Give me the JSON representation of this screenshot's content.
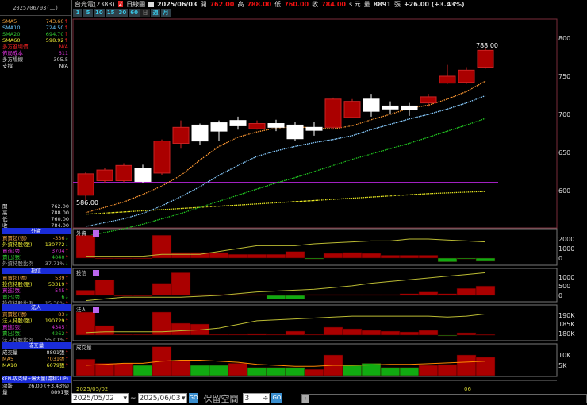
{
  "header": {
    "stock": "台光電(2383)",
    "badge": "2",
    "chart_type": "日線圖",
    "date": "2025/06/03",
    "open_label": "開",
    "open": "762.00",
    "high_label": "高",
    "high": "788.00",
    "low_label": "低",
    "low": "760.00",
    "close_label": "收",
    "close": "784.00",
    "unit": "s 元",
    "vol_label": "量",
    "volume": "8891",
    "vol_unit": "張",
    "change": "+26.00 (+3.43%)"
  },
  "periods": [
    "1",
    "5",
    "10",
    "15",
    "30",
    "60",
    "日",
    "週",
    "月"
  ],
  "left": {
    "date": "2025/06/03(二)",
    "ma": [
      {
        "label": "SMA5",
        "value": "743.60",
        "arrow": "↑",
        "color": "#e8a040"
      },
      {
        "label": "SMA10",
        "value": "724.50",
        "arrow": "↑",
        "color": "#6ac8ff"
      },
      {
        "label": "SMA20",
        "value": "694.70",
        "arrow": "↑",
        "color": "#3c3"
      },
      {
        "label": "SMA60",
        "value": "598.92",
        "arrow": "↑",
        "color": "#ee3"
      },
      {
        "label": "多方進場價",
        "value": "N/A",
        "arrow": "",
        "color": "#e22"
      },
      {
        "label": "佈局成本",
        "value": "611",
        "arrow": "",
        "color": "#d3d"
      },
      {
        "label": "多方場線",
        "value": "305.5",
        "arrow": "",
        "color": "#ddd"
      },
      {
        "label": "支撐",
        "value": "N/A",
        "arrow": "",
        "color": "#ddd"
      }
    ],
    "ohlc": [
      {
        "label": "開",
        "value": "762.00"
      },
      {
        "label": "高",
        "value": "788.00"
      },
      {
        "label": "低",
        "value": "760.00"
      },
      {
        "label": "收",
        "value": "784.00"
      }
    ],
    "sections": [
      {
        "title": "外資",
        "rows": [
          {
            "label": "買賣超(張)",
            "value": "-336",
            "arrow": "↓",
            "color": "#e8a040"
          },
          {
            "label": "外資持股(張)",
            "value": "130772",
            "arrow": "↓",
            "color": "#ee3"
          },
          {
            "label": "買進(張)",
            "value": "3704",
            "arrow": "↑",
            "color": "#d3d"
          },
          {
            "label": "賣出(張)",
            "value": "4040",
            "arrow": "↑",
            "color": "#3c3"
          },
          {
            "label": "外資持股比例",
            "value": "37.71%",
            "arrow": "↓",
            "color": "#aaa"
          }
        ]
      },
      {
        "title": "投信",
        "rows": [
          {
            "label": "買賣超(張)",
            "value": "539",
            "arrow": "↑",
            "color": "#e8a040"
          },
          {
            "label": "投信持股(張)",
            "value": "53319",
            "arrow": "↑",
            "color": "#ee3"
          },
          {
            "label": "買進(張)",
            "value": "545",
            "arrow": "↑",
            "color": "#d3d"
          },
          {
            "label": "賣出(張)",
            "value": "6",
            "arrow": "↓",
            "color": "#3c3"
          },
          {
            "label": "投信持股比例",
            "value": "15.38%",
            "arrow": "↑",
            "color": "#aaa"
          }
        ]
      },
      {
        "title": "法人",
        "rows": [
          {
            "label": "買賣超(張)",
            "value": "83",
            "arrow": "↓",
            "color": "#e8a040"
          },
          {
            "label": "法人持股(張)",
            "value": "190729",
            "arrow": "↑",
            "color": "#ee3"
          },
          {
            "label": "買進(張)",
            "value": "4345",
            "arrow": "↑",
            "color": "#d3d"
          },
          {
            "label": "賣出(張)",
            "value": "4262",
            "arrow": "↑",
            "color": "#3c3"
          },
          {
            "label": "法人持股比例",
            "value": "55.01%",
            "arrow": "↑",
            "color": "#aaa"
          }
        ]
      },
      {
        "title": "成交量",
        "rows": [
          {
            "label": "成交量",
            "value": "8891張",
            "arrow": "↑",
            "color": "#ddd"
          },
          {
            "label": "MA5",
            "value": "7031張",
            "arrow": "↑",
            "color": "#e8a040"
          },
          {
            "label": "MA10",
            "value": "6079張",
            "arrow": "↑",
            "color": "#ee3"
          }
        ]
      }
    ],
    "ken": "KEN-攻克線+爆大量(處利2UP)",
    "change_label": "漲跌",
    "change": "26.00 (+3.43%)",
    "vol_label": "量",
    "volume": "8891張"
  },
  "bottom": {
    "from": "2025/05/02",
    "tilde": "~",
    "to": "2025/06/03",
    "go": "GO",
    "reserve_label": "保留空間",
    "reserve": "3"
  },
  "chart_data": {
    "type": "candlestick",
    "x_ticks": [
      "2025/05/02",
      "06"
    ],
    "price_axis": [
      "800",
      "750",
      "700",
      "650",
      "600"
    ],
    "ylim": [
      560,
      810
    ],
    "max_label": "788.00",
    "min_label": "586.00",
    "candles": [
      [
        594,
        625,
        586,
        622
      ],
      [
        613,
        630,
        610,
        627
      ],
      [
        613,
        636,
        611,
        633
      ],
      [
        629,
        634,
        610,
        612
      ],
      [
        623,
        667,
        620,
        665
      ],
      [
        662,
        692,
        655,
        683
      ],
      [
        686,
        688,
        660,
        665
      ],
      [
        689,
        692,
        665,
        678
      ],
      [
        692,
        697,
        680,
        685
      ],
      [
        681,
        692,
        680,
        688
      ],
      [
        688,
        693,
        678,
        683
      ],
      [
        686,
        690,
        665,
        668
      ],
      [
        683,
        690,
        672,
        679
      ],
      [
        683,
        722,
        680,
        720
      ],
      [
        696,
        720,
        695,
        717
      ],
      [
        720,
        727,
        697,
        704
      ],
      [
        711,
        717,
        700,
        707
      ],
      [
        711,
        715,
        698,
        706
      ],
      [
        715,
        727,
        710,
        723
      ],
      [
        741,
        765,
        740,
        750
      ],
      [
        742,
        762,
        740,
        758
      ],
      [
        762,
        788,
        760,
        784
      ]
    ],
    "sma5": [
      571,
      578,
      585,
      595,
      606,
      620,
      640,
      658,
      670,
      677,
      682,
      684,
      682,
      681,
      685,
      693,
      700,
      708,
      712,
      720,
      730,
      743.6
    ],
    "sma10": [
      553,
      558,
      563,
      570,
      580,
      592,
      605,
      620,
      633,
      645,
      652,
      658,
      663,
      667,
      672,
      680,
      687,
      694,
      700,
      707,
      715,
      724.5
    ],
    "sma20": [
      540,
      545,
      550,
      556,
      563,
      570,
      578,
      586,
      594,
      602,
      610,
      617,
      625,
      633,
      641,
      648,
      655,
      662,
      670,
      678,
      686,
      694.7
    ],
    "sma60": [
      569,
      570.5,
      572,
      573.5,
      575,
      576.5,
      578,
      579.5,
      581,
      582.5,
      584,
      585.5,
      587,
      588.5,
      590,
      591.5,
      593,
      594.5,
      596,
      597,
      598,
      598.92
    ],
    "cost_line": 611,
    "panels": [
      {
        "title": "外資",
        "axis": [
          "2000",
          "1000",
          "0"
        ],
        "bars": [
          2400,
          20,
          20,
          20,
          2400,
          600,
          600,
          600,
          400,
          400,
          400,
          700,
          -100,
          500,
          600,
          500,
          300,
          300,
          300,
          -400,
          -100,
          -336
        ],
        "line": [
          200,
          200,
          200,
          200,
          400,
          400,
          400,
          700,
          1000,
          1300,
          1300,
          1300,
          1500,
          1600,
          1700,
          1800,
          1800,
          2000,
          2000,
          1900,
          1800,
          1700
        ]
      },
      {
        "title": "投信",
        "axis": [
          "1000",
          "500",
          "0"
        ],
        "bars": [
          300,
          900,
          0,
          0,
          700,
          1300,
          50,
          50,
          50,
          50,
          -200,
          -200,
          50,
          50,
          50,
          50,
          50,
          100,
          200,
          100,
          400,
          539
        ],
        "line": [
          -300,
          -200,
          -100,
          -100,
          -100,
          -100,
          -50,
          0,
          100,
          200,
          250,
          300,
          350,
          450,
          550,
          700,
          800,
          900,
          1000,
          1100,
          1200,
          1300
        ]
      },
      {
        "title": "法人",
        "axis": [
          "190K",
          "185K",
          "180K"
        ],
        "bars": [
          2900,
          1200,
          100,
          100,
          2900,
          1500,
          1400,
          100,
          100,
          200,
          100,
          500,
          100,
          1000,
          800,
          600,
          500,
          400,
          600,
          -50,
          300,
          83
        ],
        "line": [
          180.5,
          181,
          181,
          181,
          181,
          181.5,
          182,
          183,
          185,
          187,
          187.5,
          188,
          188.5,
          189,
          189.5,
          189.5,
          189.5,
          189.5,
          189.5,
          189,
          189.5,
          190.7
        ]
      },
      {
        "title": "成交量",
        "axis": [
          "10K",
          "5K"
        ],
        "bars": [
          8000,
          6000,
          6000,
          -5000,
          14000,
          7000,
          -5000,
          -5000,
          6000,
          -4000,
          -4000,
          -4000,
          3000,
          10000,
          -5000,
          -6000,
          -4000,
          -4000,
          5000,
          5500,
          10000,
          8891
        ],
        "line": [
          5000,
          5500,
          6000,
          6000,
          7000,
          7500,
          7500,
          7000,
          6500,
          5500,
          5000,
          4500,
          4500,
          5000,
          5000,
          5200,
          5500,
          5500,
          5800,
          6200,
          6600,
          7031
        ]
      }
    ]
  },
  "colors": {
    "up": "#a00",
    "down": "#fff",
    "green": "#1a1",
    "border": "#7a2d3a"
  }
}
